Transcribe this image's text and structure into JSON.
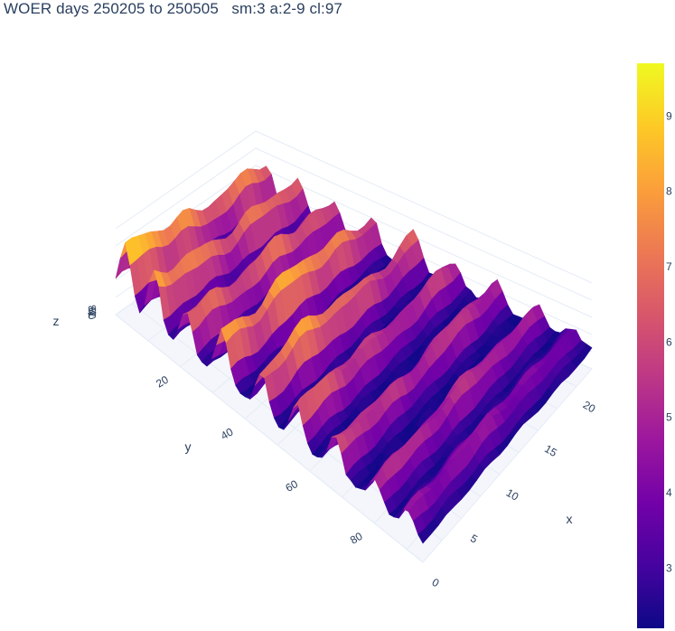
{
  "chart_data": {
    "type": "surface",
    "title": "WOER days 250205 to 250505   sm:3 a:2-9 cl:97",
    "x_label": "x",
    "y_label": "y",
    "z_label": "z",
    "x_ticks": [
      0,
      5,
      10,
      15,
      20
    ],
    "y_ticks": [
      20,
      40,
      60,
      80
    ],
    "z_ticks": [
      0,
      2,
      4,
      6,
      8
    ],
    "x_range": [
      0,
      22
    ],
    "y_range": [
      0,
      95
    ],
    "z_range": [
      0,
      10
    ],
    "colorscale": "plasma",
    "colorbar": {
      "min": 2.2,
      "max": 9.7,
      "ticks": [
        3,
        4,
        5,
        6,
        7,
        8,
        9
      ]
    },
    "ridges": [
      {
        "y": 3,
        "height": 9.6
      },
      {
        "y": 12,
        "height": 9.0
      },
      {
        "y": 22,
        "height": 8.4
      },
      {
        "y": 33,
        "height": 9.7
      },
      {
        "y": 45,
        "height": 8.8
      },
      {
        "y": 56,
        "height": 7.2
      },
      {
        "y": 68,
        "height": 6.9
      },
      {
        "y": 80,
        "height": 6.4
      },
      {
        "y": 90,
        "height": 5.2
      }
    ]
  },
  "colors": {
    "axis_text": "#2a3f5f",
    "grid": "#e5ecf6"
  }
}
